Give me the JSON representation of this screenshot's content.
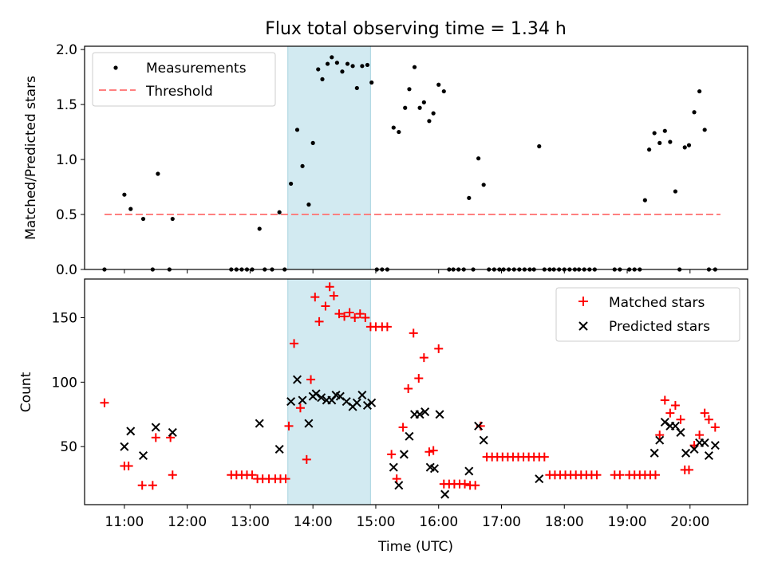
{
  "chart_data": [
    {
      "type": "scatter",
      "title": "Flux total observing time = 1.34 h",
      "xlabel": "",
      "ylabel": "Matched/Predicted stars",
      "ylim": [
        0,
        2.03
      ],
      "yticks": [
        "0.0",
        "0.5",
        "1.0",
        "1.5",
        "2.0"
      ],
      "x_is_hours_utc": true,
      "xlim": [
        "10:22",
        "20:55"
      ],
      "highlight_span": {
        "start": "13:36",
        "end": "14:55",
        "color": "#add8e6"
      },
      "threshold": {
        "name": "Threshold",
        "value": 0.5,
        "x_start": "10:41",
        "x_end": "20:29",
        "color": "#ff8080",
        "style": "dashed"
      },
      "legend": {
        "position": "upper-left",
        "entries": [
          "Measurements",
          "Threshold"
        ]
      },
      "series": [
        {
          "name": "Measurements",
          "color": "#000000",
          "marker": "dot",
          "x": [
            "10:41",
            "11:00",
            "11:06",
            "11:18",
            "11:27",
            "11:32",
            "11:43",
            "11:46",
            "12:42",
            "12:47",
            "12:52",
            "12:57",
            "13:02",
            "13:09",
            "13:14",
            "13:21",
            "13:28",
            "13:33",
            "13:39",
            "13:45",
            "13:50",
            "13:56",
            "14:00",
            "14:05",
            "14:09",
            "14:14",
            "14:18",
            "14:23",
            "14:28",
            "14:33",
            "14:38",
            "14:42",
            "14:47",
            "14:52",
            "14:56",
            "15:01",
            "15:06",
            "15:11",
            "15:17",
            "15:22",
            "15:28",
            "15:32",
            "15:37",
            "15:42",
            "15:46",
            "15:51",
            "15:55",
            "16:00",
            "16:05",
            "16:10",
            "16:14",
            "16:19",
            "16:24",
            "16:29",
            "16:33",
            "16:38",
            "16:43",
            "16:48",
            "16:53",
            "16:58",
            "17:02",
            "17:07",
            "17:12",
            "17:17",
            "17:22",
            "17:27",
            "17:31",
            "17:36",
            "17:41",
            "17:46",
            "17:50",
            "17:55",
            "18:00",
            "18:05",
            "18:10",
            "18:14",
            "18:19",
            "18:24",
            "18:29",
            "18:48",
            "18:53",
            "19:02",
            "19:07",
            "19:12",
            "19:17",
            "19:21",
            "19:26",
            "19:31",
            "19:36",
            "19:41",
            "19:46",
            "19:50",
            "19:55",
            "19:59",
            "20:04",
            "20:09",
            "20:14",
            "20:18",
            "20:24"
          ],
          "y": [
            0.0,
            0.68,
            0.55,
            0.46,
            0.0,
            0.87,
            0.0,
            0.46,
            0.0,
            0.0,
            0.0,
            0.0,
            0.0,
            0.37,
            0.0,
            0.0,
            0.52,
            0.0,
            0.78,
            1.27,
            0.94,
            0.59,
            1.15,
            1.82,
            1.73,
            1.87,
            1.93,
            1.88,
            1.8,
            1.87,
            1.85,
            1.65,
            1.85,
            1.86,
            1.7,
            0.0,
            0.0,
            0.0,
            1.29,
            1.25,
            1.47,
            1.64,
            1.84,
            1.47,
            1.52,
            1.35,
            1.42,
            1.68,
            1.62,
            0.0,
            0.0,
            0.0,
            0.0,
            0.65,
            0.0,
            1.01,
            0.77,
            0.0,
            0.0,
            0.0,
            0.0,
            0.0,
            0.0,
            0.0,
            0.0,
            0.0,
            0.0,
            1.12,
            0.0,
            0.0,
            0.0,
            0.0,
            0.0,
            0.0,
            0.0,
            0.0,
            0.0,
            0.0,
            0.0,
            0.0,
            0.0,
            0.0,
            0.0,
            0.0,
            0.63,
            1.09,
            1.24,
            1.15,
            1.26,
            1.16,
            0.71,
            0.0,
            1.11,
            1.13,
            1.43,
            1.62,
            1.27,
            0.0,
            0.0
          ]
        }
      ]
    },
    {
      "type": "scatter",
      "title": "",
      "xlabel": "Time (UTC)",
      "ylabel": "Count",
      "ylim": [
        5,
        180
      ],
      "yticks": [
        "50",
        "100",
        "150"
      ],
      "xticks": [
        "11:00",
        "12:00",
        "13:00",
        "14:00",
        "15:00",
        "16:00",
        "17:00",
        "18:00",
        "19:00",
        "20:00"
      ],
      "x_is_hours_utc": true,
      "xlim": [
        "10:22",
        "20:55"
      ],
      "highlight_span": {
        "start": "13:36",
        "end": "14:55",
        "color": "#add8e6"
      },
      "legend": {
        "position": "upper-right",
        "entries": [
          "Matched stars",
          "Predicted stars"
        ]
      },
      "series": [
        {
          "name": "Matched stars",
          "color": "#ff0000",
          "marker": "plus",
          "points": [
            [
              "10:41",
              84
            ],
            [
              "11:00",
              35
            ],
            [
              "11:04",
              35
            ],
            [
              "11:17",
              20
            ],
            [
              "11:27",
              20
            ],
            [
              "11:30",
              57
            ],
            [
              "11:44",
              57
            ],
            [
              "11:46",
              28
            ],
            [
              "12:42",
              28
            ],
            [
              "12:47",
              28
            ],
            [
              "12:52",
              28
            ],
            [
              "12:57",
              28
            ],
            [
              "13:02",
              28
            ],
            [
              "13:07",
              25
            ],
            [
              "13:12",
              25
            ],
            [
              "13:18",
              25
            ],
            [
              "13:24",
              25
            ],
            [
              "13:29",
              25
            ],
            [
              "13:34",
              25
            ],
            [
              "13:37",
              66
            ],
            [
              "13:42",
              130
            ],
            [
              "13:48",
              80
            ],
            [
              "13:54",
              40
            ],
            [
              "13:58",
              102
            ],
            [
              "14:02",
              166
            ],
            [
              "14:06",
              147
            ],
            [
              "14:12",
              159
            ],
            [
              "14:16",
              174
            ],
            [
              "14:20",
              167
            ],
            [
              "14:25",
              153
            ],
            [
              "14:30",
              151
            ],
            [
              "14:35",
              154
            ],
            [
              "14:40",
              150
            ],
            [
              "14:45",
              153
            ],
            [
              "14:50",
              150
            ],
            [
              "14:55",
              143
            ],
            [
              "15:00",
              143
            ],
            [
              "15:06",
              143
            ],
            [
              "15:11",
              143
            ],
            [
              "15:15",
              44
            ],
            [
              "15:20",
              25
            ],
            [
              "15:26",
              65
            ],
            [
              "15:31",
              95
            ],
            [
              "15:36",
              138
            ],
            [
              "15:41",
              103
            ],
            [
              "15:46",
              119
            ],
            [
              "15:51",
              46
            ],
            [
              "15:55",
              47
            ],
            [
              "16:00",
              126
            ],
            [
              "16:05",
              21
            ],
            [
              "16:10",
              21
            ],
            [
              "16:15",
              21
            ],
            [
              "16:20",
              21
            ],
            [
              "16:25",
              21
            ],
            [
              "16:30",
              20
            ],
            [
              "16:35",
              20
            ],
            [
              "16:40",
              66
            ],
            [
              "16:46",
              42
            ],
            [
              "16:51",
              42
            ],
            [
              "16:56",
              42
            ],
            [
              "17:01",
              42
            ],
            [
              "17:06",
              42
            ],
            [
              "17:11",
              42
            ],
            [
              "17:16",
              42
            ],
            [
              "17:21",
              42
            ],
            [
              "17:26",
              42
            ],
            [
              "17:31",
              42
            ],
            [
              "17:36",
              42
            ],
            [
              "17:41",
              42
            ],
            [
              "17:46",
              28
            ],
            [
              "17:51",
              28
            ],
            [
              "17:56",
              28
            ],
            [
              "18:01",
              28
            ],
            [
              "18:06",
              28
            ],
            [
              "18:11",
              28
            ],
            [
              "18:16",
              28
            ],
            [
              "18:21",
              28
            ],
            [
              "18:26",
              28
            ],
            [
              "18:31",
              28
            ],
            [
              "18:48",
              28
            ],
            [
              "18:53",
              28
            ],
            [
              "19:02",
              28
            ],
            [
              "19:07",
              28
            ],
            [
              "19:12",
              28
            ],
            [
              "19:17",
              28
            ],
            [
              "19:22",
              28
            ],
            [
              "19:27",
              28
            ],
            [
              "19:31",
              59
            ],
            [
              "19:36",
              86
            ],
            [
              "19:41",
              76
            ],
            [
              "19:46",
              82
            ],
            [
              "19:51",
              71
            ],
            [
              "19:55",
              32
            ],
            [
              "19:59",
              32
            ],
            [
              "20:04",
              51
            ],
            [
              "20:09",
              59
            ],
            [
              "20:14",
              76
            ],
            [
              "20:18",
              71
            ],
            [
              "20:24",
              65
            ]
          ]
        },
        {
          "name": "Predicted stars",
          "color": "#000000",
          "marker": "x",
          "points": [
            [
              "11:00",
              50
            ],
            [
              "11:06",
              62
            ],
            [
              "11:18",
              43
            ],
            [
              "11:30",
              65
            ],
            [
              "11:46",
              61
            ],
            [
              "13:09",
              68
            ],
            [
              "13:28",
              48
            ],
            [
              "13:39",
              85
            ],
            [
              "13:45",
              102
            ],
            [
              "13:50",
              86
            ],
            [
              "13:56",
              68
            ],
            [
              "14:00",
              89
            ],
            [
              "14:03",
              91
            ],
            [
              "14:08",
              88
            ],
            [
              "14:13",
              86
            ],
            [
              "14:18",
              86
            ],
            [
              "14:22",
              90
            ],
            [
              "14:26",
              89
            ],
            [
              "14:32",
              85
            ],
            [
              "14:38",
              81
            ],
            [
              "14:42",
              84
            ],
            [
              "14:47",
              90
            ],
            [
              "14:52",
              82
            ],
            [
              "14:56",
              84
            ],
            [
              "15:17",
              34
            ],
            [
              "15:22",
              20
            ],
            [
              "15:27",
              44
            ],
            [
              "15:32",
              58
            ],
            [
              "15:37",
              75
            ],
            [
              "15:42",
              75
            ],
            [
              "15:47",
              77
            ],
            [
              "15:52",
              34
            ],
            [
              "15:56",
              33
            ],
            [
              "16:01",
              75
            ],
            [
              "16:06",
              13
            ],
            [
              "16:29",
              31
            ],
            [
              "16:38",
              66
            ],
            [
              "16:43",
              55
            ],
            [
              "17:36",
              25
            ],
            [
              "19:26",
              45
            ],
            [
              "19:31",
              55
            ],
            [
              "19:36",
              69
            ],
            [
              "19:41",
              66
            ],
            [
              "19:46",
              66
            ],
            [
              "19:51",
              61
            ],
            [
              "19:56",
              45
            ],
            [
              "20:04",
              48
            ],
            [
              "20:09",
              53
            ],
            [
              "20:14",
              53
            ],
            [
              "20:18",
              43
            ],
            [
              "20:24",
              51
            ]
          ]
        }
      ]
    }
  ]
}
